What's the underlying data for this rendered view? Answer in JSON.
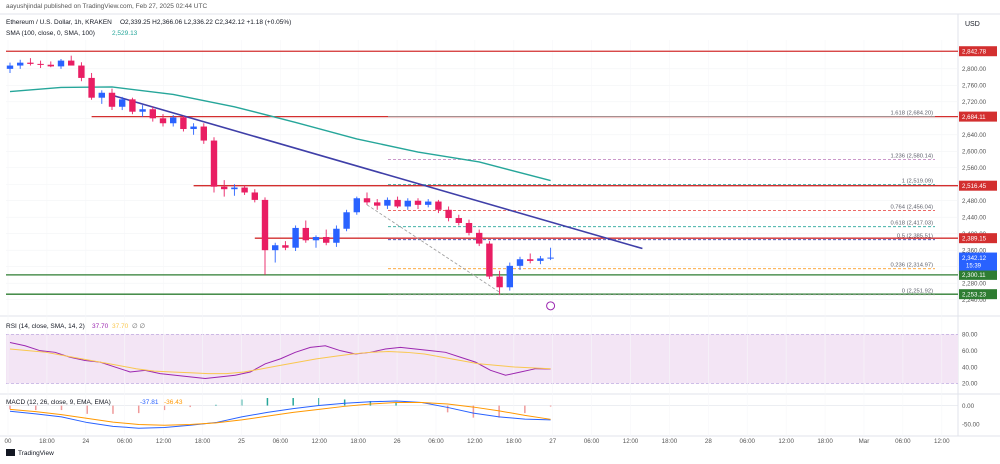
{
  "header": {
    "published": "aayushjindal published on TradingView.com, Feb 27, 2025 02:44 UTC",
    "symbol_line": "Ethereum / U.S. Dollar, 1h, KRAKEN",
    "ohlc": "O2,339.25  H2,366.06  L2,336.22  C2,342.12  +1.18 (+0.05%)",
    "sma_line": "SMA (100, close, 0, SMA, 100)",
    "sma_value": "2,529.13",
    "currency": "USD"
  },
  "rsi_panel": {
    "label": "RSI (14, close, SMA, 14, 2)",
    "value_1": "37.70",
    "value_2": "37.70",
    "extra": "∅  ∅",
    "ticks": [
      "80.00",
      "60.00",
      "40.00",
      "20.00"
    ],
    "ylim": [
      12,
      95
    ]
  },
  "macd_panel": {
    "label": "MACD (12, 26, close, 9, EMA, EMA)",
    "v1": "-37.81",
    "v2": "-36.43",
    "ticks": [
      "0.00",
      "-50.00"
    ]
  },
  "footer": {
    "brand": "TradingView"
  },
  "colors": {
    "up": "#2962ff",
    "down": "#e91e63",
    "sma": "#26a69a",
    "trend": "#3f3fa8",
    "resistance": "#d32f2f",
    "support": "#2e7d32",
    "fib": "#9e9e9e",
    "rsi_fill": "#f3e5f5",
    "rsi_line": "#9c27b0",
    "rsi_ma": "#f9c74f",
    "macd": "#2962ff",
    "signal": "#ff9800"
  },
  "chart_data": {
    "type": "candlestick",
    "x_labels": [
      "00",
      "18:00",
      "24",
      "06:00",
      "12:00",
      "18:00",
      "25",
      "06:00",
      "12:00",
      "18:00",
      "26",
      "06:00",
      "12:00",
      "18:00",
      "27",
      "06:00",
      "12:00",
      "18:00",
      "28",
      "06:00",
      "12:00",
      "18:00",
      "Mar",
      "06:00",
      "12:00"
    ],
    "y_ticks": [
      2800,
      2760,
      2720,
      2680,
      2640,
      2600,
      2560,
      2520,
      2480,
      2440,
      2400,
      2360,
      2320,
      2280,
      2240
    ],
    "ylim": [
      2210,
      2870
    ],
    "candles": [
      {
        "t": 0,
        "o": 2800,
        "h": 2815,
        "l": 2790,
        "c": 2808
      },
      {
        "t": 1,
        "o": 2808,
        "h": 2822,
        "l": 2800,
        "c": 2815
      },
      {
        "t": 2,
        "o": 2815,
        "h": 2826,
        "l": 2808,
        "c": 2812
      },
      {
        "t": 3,
        "o": 2812,
        "h": 2820,
        "l": 2802,
        "c": 2810
      },
      {
        "t": 4,
        "o": 2810,
        "h": 2818,
        "l": 2804,
        "c": 2806
      },
      {
        "t": 5,
        "o": 2806,
        "h": 2824,
        "l": 2800,
        "c": 2820
      },
      {
        "t": 6,
        "o": 2820,
        "h": 2832,
        "l": 2810,
        "c": 2808
      },
      {
        "t": 7,
        "o": 2808,
        "h": 2816,
        "l": 2770,
        "c": 2778
      },
      {
        "t": 8,
        "o": 2778,
        "h": 2790,
        "l": 2725,
        "c": 2730
      },
      {
        "t": 9,
        "o": 2730,
        "h": 2748,
        "l": 2715,
        "c": 2742
      },
      {
        "t": 10,
        "o": 2742,
        "h": 2752,
        "l": 2700,
        "c": 2708
      },
      {
        "t": 11,
        "o": 2708,
        "h": 2732,
        "l": 2700,
        "c": 2726
      },
      {
        "t": 12,
        "o": 2726,
        "h": 2730,
        "l": 2690,
        "c": 2696
      },
      {
        "t": 13,
        "o": 2696,
        "h": 2712,
        "l": 2684,
        "c": 2702
      },
      {
        "t": 14,
        "o": 2702,
        "h": 2708,
        "l": 2672,
        "c": 2680
      },
      {
        "t": 15,
        "o": 2680,
        "h": 2690,
        "l": 2660,
        "c": 2668
      },
      {
        "t": 16,
        "o": 2668,
        "h": 2688,
        "l": 2660,
        "c": 2682
      },
      {
        "t": 17,
        "o": 2682,
        "h": 2686,
        "l": 2648,
        "c": 2654
      },
      {
        "t": 18,
        "o": 2654,
        "h": 2668,
        "l": 2640,
        "c": 2660
      },
      {
        "t": 19,
        "o": 2660,
        "h": 2668,
        "l": 2618,
        "c": 2626
      },
      {
        "t": 20,
        "o": 2626,
        "h": 2634,
        "l": 2500,
        "c": 2514
      },
      {
        "t": 21,
        "o": 2514,
        "h": 2530,
        "l": 2490,
        "c": 2508
      },
      {
        "t": 22,
        "o": 2508,
        "h": 2520,
        "l": 2492,
        "c": 2512
      },
      {
        "t": 23,
        "o": 2512,
        "h": 2518,
        "l": 2494,
        "c": 2500
      },
      {
        "t": 24,
        "o": 2500,
        "h": 2508,
        "l": 2476,
        "c": 2482
      },
      {
        "t": 25,
        "o": 2482,
        "h": 2488,
        "l": 2300,
        "c": 2360
      },
      {
        "t": 26,
        "o": 2360,
        "h": 2378,
        "l": 2330,
        "c": 2372
      },
      {
        "t": 27,
        "o": 2372,
        "h": 2382,
        "l": 2360,
        "c": 2366
      },
      {
        "t": 28,
        "o": 2366,
        "h": 2420,
        "l": 2358,
        "c": 2414
      },
      {
        "t": 29,
        "o": 2414,
        "h": 2432,
        "l": 2378,
        "c": 2384
      },
      {
        "t": 30,
        "o": 2384,
        "h": 2396,
        "l": 2366,
        "c": 2392
      },
      {
        "t": 31,
        "o": 2392,
        "h": 2410,
        "l": 2372,
        "c": 2378
      },
      {
        "t": 32,
        "o": 2378,
        "h": 2420,
        "l": 2368,
        "c": 2412
      },
      {
        "t": 33,
        "o": 2412,
        "h": 2458,
        "l": 2406,
        "c": 2452
      },
      {
        "t": 34,
        "o": 2452,
        "h": 2490,
        "l": 2446,
        "c": 2486
      },
      {
        "t": 35,
        "o": 2486,
        "h": 2500,
        "l": 2470,
        "c": 2476
      },
      {
        "t": 36,
        "o": 2476,
        "h": 2484,
        "l": 2458,
        "c": 2468
      },
      {
        "t": 37,
        "o": 2468,
        "h": 2488,
        "l": 2460,
        "c": 2482
      },
      {
        "t": 38,
        "o": 2482,
        "h": 2490,
        "l": 2462,
        "c": 2466
      },
      {
        "t": 39,
        "o": 2466,
        "h": 2486,
        "l": 2458,
        "c": 2480
      },
      {
        "t": 40,
        "o": 2480,
        "h": 2486,
        "l": 2460,
        "c": 2470
      },
      {
        "t": 41,
        "o": 2470,
        "h": 2484,
        "l": 2464,
        "c": 2478
      },
      {
        "t": 42,
        "o": 2478,
        "h": 2482,
        "l": 2450,
        "c": 2458
      },
      {
        "t": 43,
        "o": 2458,
        "h": 2466,
        "l": 2430,
        "c": 2438
      },
      {
        "t": 44,
        "o": 2438,
        "h": 2446,
        "l": 2420,
        "c": 2426
      },
      {
        "t": 45,
        "o": 2426,
        "h": 2434,
        "l": 2396,
        "c": 2402
      },
      {
        "t": 46,
        "o": 2402,
        "h": 2410,
        "l": 2370,
        "c": 2376
      },
      {
        "t": 47,
        "o": 2376,
        "h": 2382,
        "l": 2290,
        "c": 2296
      },
      {
        "t": 48,
        "o": 2296,
        "h": 2310,
        "l": 2252,
        "c": 2270
      },
      {
        "t": 49,
        "o": 2270,
        "h": 2330,
        "l": 2262,
        "c": 2322
      },
      {
        "t": 50,
        "o": 2322,
        "h": 2344,
        "l": 2312,
        "c": 2338
      },
      {
        "t": 51,
        "o": 2338,
        "h": 2352,
        "l": 2328,
        "c": 2334
      },
      {
        "t": 52,
        "o": 2334,
        "h": 2346,
        "l": 2326,
        "c": 2340
      },
      {
        "t": 53,
        "o": 2340,
        "h": 2366,
        "l": 2336,
        "c": 2342
      }
    ],
    "sma100": [
      [
        0,
        2745
      ],
      [
        5,
        2755
      ],
      [
        10,
        2756
      ],
      [
        16,
        2738
      ],
      [
        22,
        2708
      ],
      [
        28,
        2670
      ],
      [
        34,
        2630
      ],
      [
        40,
        2598
      ],
      [
        46,
        2574
      ],
      [
        53,
        2529
      ]
    ],
    "trend_line": [
      [
        10,
        2736
      ],
      [
        62,
        2364
      ]
    ],
    "dashed_drop": [
      [
        35,
        2470
      ],
      [
        48,
        2258
      ]
    ],
    "levels": [
      {
        "price": 2842.78,
        "label": "2,842.78",
        "color": "resistance"
      },
      {
        "price": 2684.11,
        "label": "2,684.11",
        "color": "resistance",
        "from": 8
      },
      {
        "price": 2516.45,
        "label": "2,516.45",
        "color": "resistance",
        "from": 18
      },
      {
        "price": 2389.15,
        "label": "2,389.15",
        "color": "resistance",
        "from": 24
      },
      {
        "price": 2300.11,
        "label": "2,300.11",
        "color": "support"
      },
      {
        "price": 2253.23,
        "label": "2,253.23",
        "color": "support"
      }
    ],
    "fib_levels": [
      {
        "price": 2684.2,
        "label": "1.618 (2,684.20)",
        "dashed": false,
        "color": "#9e9e9e"
      },
      {
        "price": 2580.14,
        "label": "1.236 (2,580.14)",
        "dashed": true,
        "color": "#c48ac4"
      },
      {
        "price": 2519.09,
        "label": "1 (2,519.09)",
        "dashed": true,
        "color": "#26a69a"
      },
      {
        "price": 2456.04,
        "label": "0.764 (2,456.04)",
        "dashed": true,
        "color": "#e53935"
      },
      {
        "price": 2417.03,
        "label": "0.618 (2,417.03)",
        "dashed": true,
        "color": "#26a69a"
      },
      {
        "price": 2385.51,
        "label": "0.5 (2,385.51)",
        "dashed": true,
        "color": "#3f3fa8"
      },
      {
        "price": 2314.97,
        "label": "0.236 (2,314.97)",
        "dashed": true,
        "color": "#fb8c00"
      },
      {
        "price": 2251.92,
        "label": "0 (2,251.92)",
        "dashed": true,
        "color": "#9e9e9e"
      }
    ],
    "last_price": {
      "price": 2342.12,
      "label": "2,342.12",
      "sub": "15:39"
    },
    "rsi": [
      70,
      66,
      60,
      58,
      52,
      48,
      46,
      40,
      34,
      36,
      32,
      30,
      28,
      26,
      28,
      30,
      34,
      44,
      50,
      58,
      64,
      66,
      60,
      56,
      58,
      62,
      64,
      62,
      60,
      58,
      52,
      46,
      36,
      30,
      34,
      38,
      37.7
    ],
    "rsi_ma": [
      62,
      60,
      58,
      54,
      50,
      46,
      42,
      38,
      35,
      34,
      33,
      32,
      32,
      34,
      38,
      42,
      46,
      50,
      53,
      56,
      58,
      59,
      58,
      56,
      52,
      48,
      44,
      42,
      40,
      39,
      38
    ],
    "macd": [
      -15,
      -22,
      -30,
      -45,
      -55,
      -60,
      -58,
      -52,
      -45,
      -30,
      -18,
      -8,
      0,
      6,
      10,
      12,
      8,
      -5,
      -20,
      -30,
      -36,
      -37.81
    ],
    "macd_signal": [
      -10,
      -16,
      -24,
      -34,
      -44,
      -50,
      -52,
      -50,
      -46,
      -38,
      -28,
      -18,
      -10,
      -2,
      4,
      8,
      8,
      4,
      -4,
      -14,
      -26,
      -36.43
    ]
  }
}
